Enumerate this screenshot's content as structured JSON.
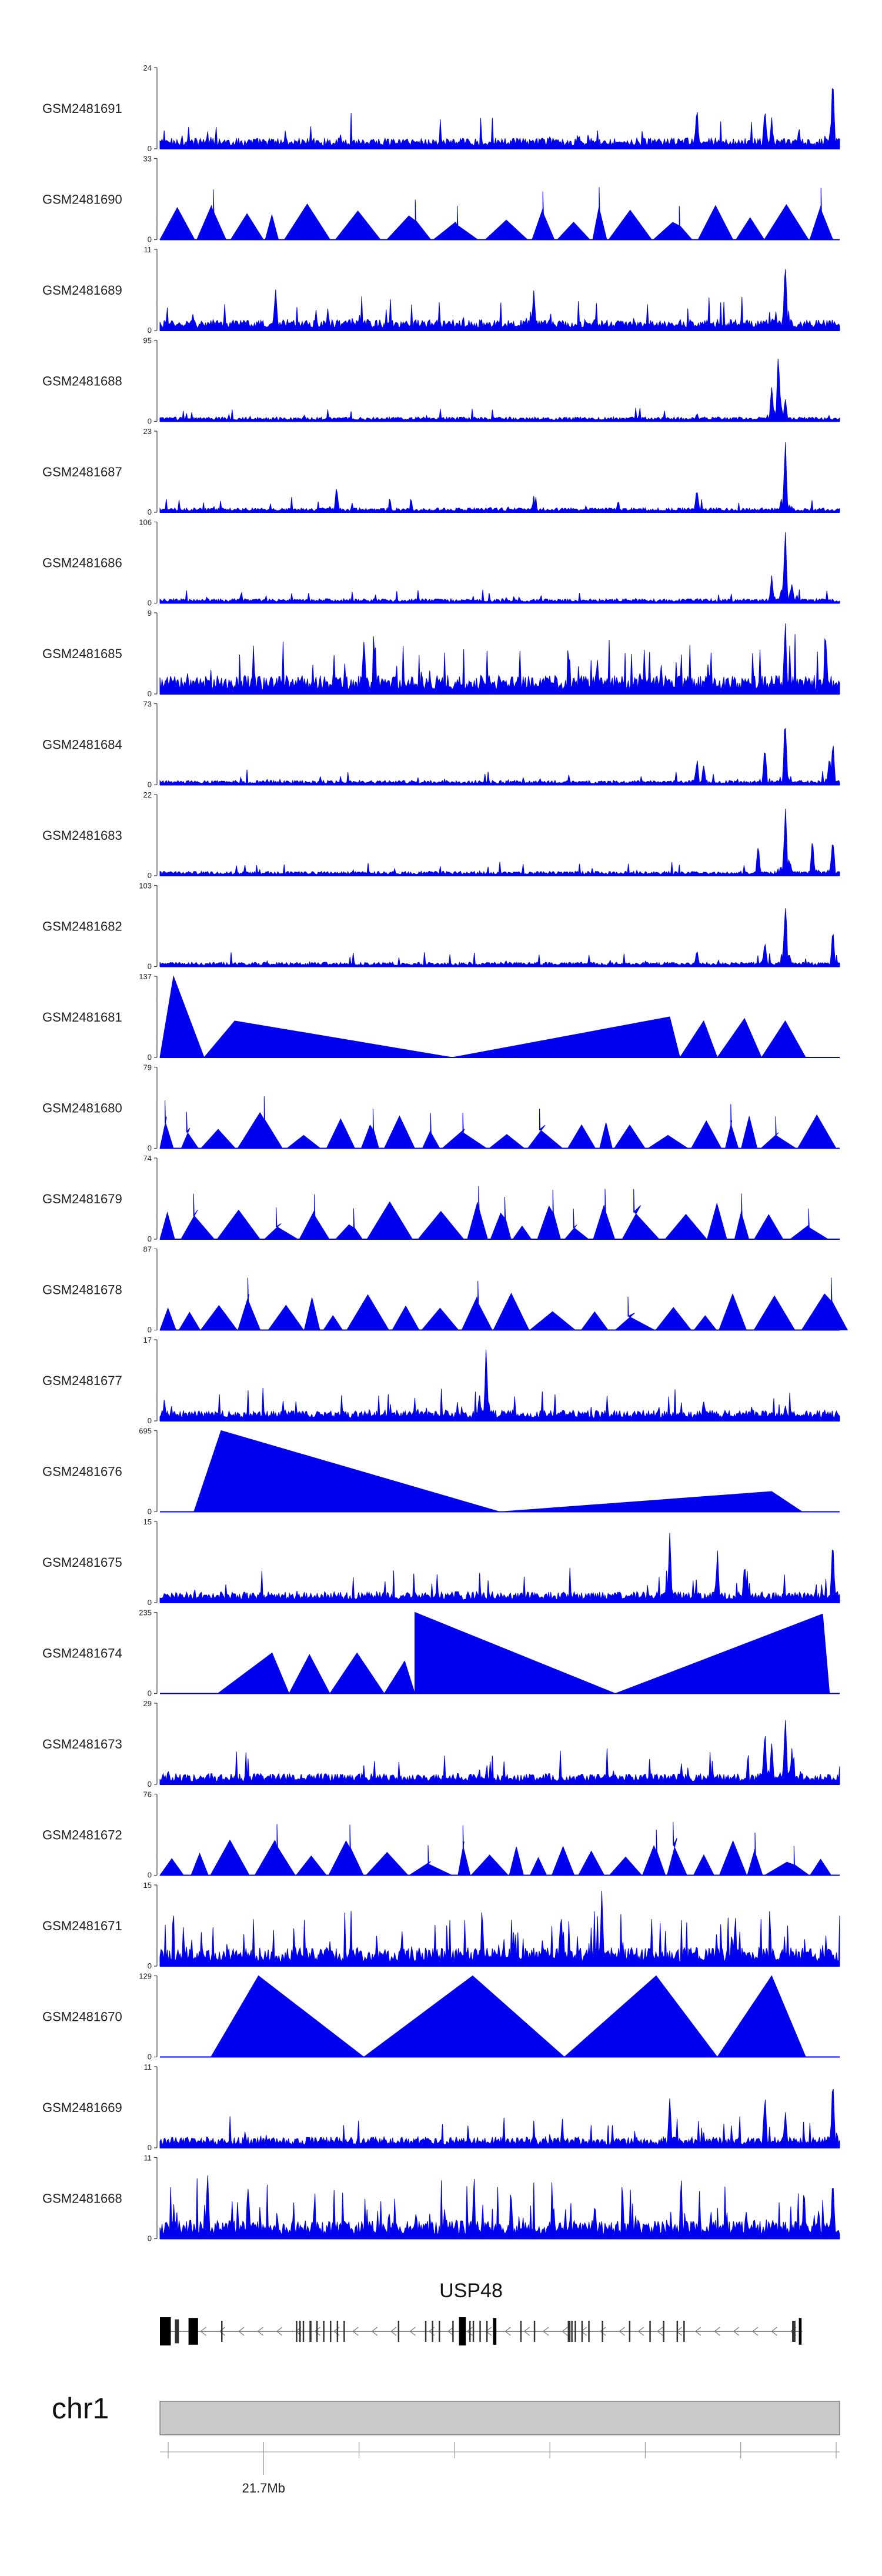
{
  "chart_data": {
    "type": "area",
    "title": "",
    "color": "#0000ee",
    "tracks": [
      {
        "name": "GSM2481691",
        "max": 24,
        "min": 0,
        "style": "noise",
        "peaks": [
          [
            0.79,
            0.58
          ],
          [
            0.89,
            0.55
          ],
          [
            0.9,
            0.4
          ],
          [
            0.94,
            0.3
          ],
          [
            0.99,
            1.0
          ]
        ]
      },
      {
        "name": "GSM2481690",
        "max": 33,
        "min": 0,
        "style": "triangles",
        "peaks": [
          [
            0.08,
            0.5
          ],
          [
            0.18,
            0.85
          ],
          [
            0.49,
            0.9
          ],
          [
            0.58,
            0.98
          ],
          [
            0.72,
            0.7
          ]
        ]
      },
      {
        "name": "GSM2481689",
        "max": 11,
        "min": 0,
        "style": "noise",
        "peaks": [
          [
            0.17,
            0.62
          ],
          [
            0.55,
            0.6
          ],
          [
            0.92,
            1.0
          ]
        ]
      },
      {
        "name": "GSM2481688",
        "max": 95,
        "min": 0,
        "style": "spike",
        "peaks": [
          [
            0.79,
            0.12
          ],
          [
            0.91,
            1.0
          ],
          [
            0.9,
            0.5
          ],
          [
            0.92,
            0.35
          ]
        ]
      },
      {
        "name": "GSM2481687",
        "max": 23,
        "min": 0,
        "style": "spike",
        "peaks": [
          [
            0.26,
            0.35
          ],
          [
            0.79,
            0.32
          ],
          [
            0.92,
            1.0
          ],
          [
            0.55,
            0.2
          ]
        ]
      },
      {
        "name": "GSM2481686",
        "max": 106,
        "min": 0,
        "style": "spike",
        "peaks": [
          [
            0.79,
            0.08
          ],
          [
            0.92,
            1.0
          ],
          [
            0.9,
            0.4
          ],
          [
            0.93,
            0.3
          ]
        ]
      },
      {
        "name": "GSM2481685",
        "max": 9,
        "min": 0,
        "style": "dense",
        "peaks": [
          [
            0.3,
            0.82
          ],
          [
            0.92,
            1.0
          ],
          [
            0.98,
            0.75
          ]
        ]
      },
      {
        "name": "GSM2481684",
        "max": 73,
        "min": 0,
        "style": "spike",
        "peaks": [
          [
            0.79,
            0.38
          ],
          [
            0.8,
            0.3
          ],
          [
            0.89,
            0.55
          ],
          [
            0.92,
            1.0
          ],
          [
            0.99,
            0.6
          ],
          [
            0.985,
            0.45
          ]
        ]
      },
      {
        "name": "GSM2481683",
        "max": 22,
        "min": 0,
        "style": "spike",
        "peaks": [
          [
            0.92,
            1.0
          ],
          [
            0.88,
            0.45
          ],
          [
            0.96,
            0.5
          ],
          [
            0.99,
            0.55
          ]
        ]
      },
      {
        "name": "GSM2481682",
        "max": 103,
        "min": 0,
        "style": "spike",
        "peaks": [
          [
            0.79,
            0.25
          ],
          [
            0.89,
            0.35
          ],
          [
            0.92,
            1.0
          ],
          [
            0.99,
            0.5
          ]
        ]
      },
      {
        "name": "GSM2481681",
        "max": 137,
        "min": 0,
        "style": "segments",
        "points": [
          [
            0.0,
            0.0
          ],
          [
            0.02,
            1.0
          ],
          [
            0.065,
            0.0
          ],
          [
            0.11,
            0.45
          ],
          [
            0.43,
            0.0
          ],
          [
            0.75,
            0.5
          ],
          [
            0.765,
            0.0
          ],
          [
            0.8,
            0.45
          ],
          [
            0.82,
            0.0
          ],
          [
            0.86,
            0.48
          ],
          [
            0.885,
            0.0
          ],
          [
            0.92,
            0.45
          ],
          [
            0.95,
            0.0
          ]
        ]
      },
      {
        "name": "GSM2481680",
        "max": 79,
        "min": 0,
        "style": "triangles",
        "peaks": [
          [
            0.12,
            0.5
          ],
          [
            0.23,
            1.0
          ],
          [
            0.34,
            0.5
          ],
          [
            0.48,
            0.52
          ],
          [
            0.62,
            0.98
          ],
          [
            0.8,
            0.95
          ],
          [
            0.92,
            0.5
          ]
        ]
      },
      {
        "name": "GSM2481679",
        "max": 74,
        "min": 0,
        "style": "triangles",
        "peaks": [
          [
            0.07,
            0.92
          ],
          [
            0.12,
            0.85
          ],
          [
            0.27,
            0.8
          ],
          [
            0.5,
            0.95
          ],
          [
            0.68,
            0.9
          ],
          [
            0.92,
            0.95
          ],
          [
            0.99,
            0.98
          ]
        ]
      },
      {
        "name": "GSM2481678",
        "max": 87,
        "min": 0,
        "style": "triangles",
        "peaks": [
          [
            0.11,
            0.98
          ],
          [
            0.29,
            0.7
          ],
          [
            0.43,
            0.75
          ],
          [
            0.76,
            0.98
          ],
          [
            0.9,
            0.4
          ]
        ]
      },
      {
        "name": "GSM2481677",
        "max": 17,
        "min": 0,
        "style": "noise",
        "peaks": [
          [
            0.48,
            1.0
          ],
          [
            0.47,
            0.35
          ],
          [
            0.8,
            0.3
          ],
          [
            0.92,
            0.25
          ]
        ]
      },
      {
        "name": "GSM2481676",
        "max": 695,
        "min": 0,
        "style": "segments",
        "points": [
          [
            0.05,
            0.0
          ],
          [
            0.09,
            1.0
          ],
          [
            0.5,
            0.0
          ],
          [
            0.9,
            0.25
          ],
          [
            0.945,
            0.0
          ]
        ]
      },
      {
        "name": "GSM2481675",
        "max": 15,
        "min": 0,
        "style": "noise",
        "peaks": [
          [
            0.75,
            0.95
          ],
          [
            0.82,
            0.72
          ],
          [
            0.86,
            0.6
          ],
          [
            0.99,
            0.85
          ]
        ]
      },
      {
        "name": "GSM2481674",
        "max": 235,
        "min": 0,
        "style": "segments",
        "points": [
          [
            0.085,
            0.0
          ],
          [
            0.165,
            0.5
          ],
          [
            0.19,
            0.0
          ],
          [
            0.22,
            0.48
          ],
          [
            0.25,
            0.0
          ],
          [
            0.29,
            0.5
          ],
          [
            0.33,
            0.0
          ],
          [
            0.36,
            0.4
          ],
          [
            0.375,
            0.0
          ],
          [
            0.375,
            1.0
          ],
          [
            0.67,
            0.0
          ],
          [
            0.975,
            0.98
          ],
          [
            0.985,
            0.0
          ]
        ]
      },
      {
        "name": "GSM2481673",
        "max": 29,
        "min": 0,
        "style": "noise",
        "peaks": [
          [
            0.89,
            0.72
          ],
          [
            0.9,
            0.55
          ],
          [
            0.92,
            1.0
          ],
          [
            0.93,
            0.5
          ]
        ]
      },
      {
        "name": "GSM2481672",
        "max": 76,
        "min": 0,
        "style": "triangles",
        "peaks": [
          [
            0.23,
            0.98
          ],
          [
            0.5,
            0.72
          ],
          [
            0.61,
            0.75
          ],
          [
            0.72,
            0.98
          ],
          [
            0.9,
            0.5
          ]
        ]
      },
      {
        "name": "GSM2481671",
        "max": 15,
        "min": 0,
        "style": "dense",
        "peaks": [
          [
            0.65,
            1.0
          ],
          [
            0.59,
            0.8
          ]
        ]
      },
      {
        "name": "GSM2481670",
        "max": 129,
        "min": 0,
        "style": "segments",
        "points": [
          [
            0.075,
            0.0
          ],
          [
            0.145,
            1.0
          ],
          [
            0.3,
            0.0
          ],
          [
            0.46,
            1.0
          ],
          [
            0.595,
            0.0
          ],
          [
            0.73,
            1.0
          ],
          [
            0.82,
            0.0
          ],
          [
            0.9,
            1.0
          ],
          [
            0.95,
            0.0
          ]
        ]
      },
      {
        "name": "GSM2481669",
        "max": 11,
        "min": 0,
        "style": "noise",
        "peaks": [
          [
            0.75,
            0.7
          ],
          [
            0.89,
            0.75
          ],
          [
            0.92,
            0.5
          ],
          [
            0.99,
            1.0
          ]
        ]
      },
      {
        "name": "GSM2481668",
        "max": 11,
        "min": 0,
        "style": "dense",
        "peaks": [
          [
            0.07,
            0.85
          ],
          [
            0.13,
            0.7
          ],
          [
            0.64,
            0.5
          ],
          [
            0.99,
            0.9
          ]
        ]
      }
    ],
    "gene": {
      "name": "USP48",
      "exons": [
        [
          0.0,
          0.016,
          1.0
        ],
        [
          0.022,
          0.028,
          0.85
        ],
        [
          0.042,
          0.056,
          0.95
        ],
        [
          0.09,
          0.092,
          0.75
        ],
        [
          0.2,
          0.202,
          0.75
        ],
        [
          0.205,
          0.207,
          0.75
        ],
        [
          0.21,
          0.212,
          0.75
        ],
        [
          0.22,
          0.223,
          0.75
        ],
        [
          0.23,
          0.232,
          0.75
        ],
        [
          0.24,
          0.242,
          0.75
        ],
        [
          0.25,
          0.252,
          0.75
        ],
        [
          0.26,
          0.262,
          0.75
        ],
        [
          0.27,
          0.272,
          0.75
        ],
        [
          0.35,
          0.352,
          0.75
        ],
        [
          0.39,
          0.392,
          0.75
        ],
        [
          0.4,
          0.402,
          0.75
        ],
        [
          0.41,
          0.412,
          0.75
        ],
        [
          0.43,
          0.432,
          0.75
        ],
        [
          0.44,
          0.45,
          1.0
        ],
        [
          0.455,
          0.457,
          0.75
        ],
        [
          0.46,
          0.462,
          0.75
        ],
        [
          0.47,
          0.472,
          0.75
        ],
        [
          0.48,
          0.482,
          0.75
        ],
        [
          0.49,
          0.495,
          0.95
        ],
        [
          0.53,
          0.532,
          0.75
        ],
        [
          0.55,
          0.552,
          0.75
        ],
        [
          0.6,
          0.602,
          0.75
        ],
        [
          0.6,
          0.604,
          0.75
        ],
        [
          0.605,
          0.607,
          0.75
        ],
        [
          0.61,
          0.612,
          0.75
        ],
        [
          0.62,
          0.622,
          0.75
        ],
        [
          0.63,
          0.632,
          0.75
        ],
        [
          0.65,
          0.652,
          0.75
        ],
        [
          0.69,
          0.692,
          0.75
        ],
        [
          0.72,
          0.722,
          0.75
        ],
        [
          0.74,
          0.742,
          0.75
        ],
        [
          0.76,
          0.762,
          0.75
        ],
        [
          0.77,
          0.772,
          0.75
        ],
        [
          0.93,
          0.935,
          0.75
        ],
        [
          0.94,
          0.944,
          0.95
        ]
      ]
    },
    "chromosome": "chr1",
    "axis": {
      "tick_label": "21.7Mb",
      "tick_count": 8,
      "labeled_tick_index": 1
    },
    "xlabel": "",
    "ylabel": ""
  }
}
